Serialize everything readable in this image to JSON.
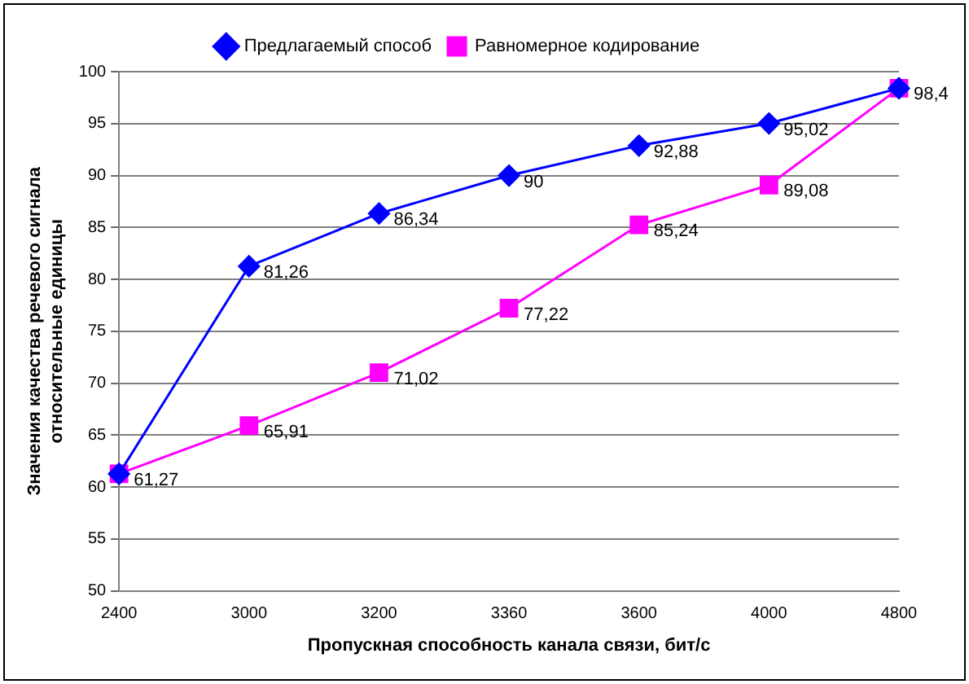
{
  "chart_data": {
    "type": "line",
    "xlabel": "Пропускная способность канала связи, бит/с",
    "ylabel": "Значения качества речевого сигнала\nотносительные единицы",
    "categories": [
      "2400",
      "3000",
      "3200",
      "3360",
      "3600",
      "4000",
      "4800"
    ],
    "series": [
      {
        "name": "Предлагаемый способ",
        "color": "#0000ff",
        "marker": "diamond",
        "values": [
          61.27,
          81.26,
          86.34,
          90,
          92.88,
          95.02,
          98.4
        ],
        "value_labels": [
          "61,27",
          "81,26",
          "86,34",
          "90",
          "92,88",
          "95,02",
          "98,4"
        ]
      },
      {
        "name": "Равномерное кодирование",
        "color": "#ff00ff",
        "marker": "square",
        "values": [
          61.27,
          65.91,
          71.02,
          77.22,
          85.24,
          89.08,
          98.4
        ],
        "value_labels": [
          null,
          "65,91",
          "71,02",
          "77,22",
          "85,24",
          "89,08",
          null
        ]
      }
    ],
    "ylim": [
      50,
      100
    ],
    "yticks": [
      50,
      55,
      60,
      65,
      70,
      75,
      80,
      85,
      90,
      95,
      100
    ],
    "grid": "y",
    "legend": "top",
    "line_style": "solid"
  }
}
